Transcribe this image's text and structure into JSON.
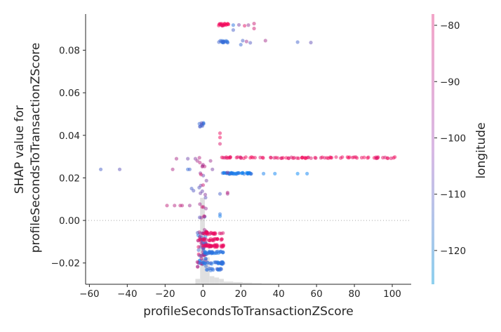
{
  "chart_data": {
    "type": "scatter",
    "xlabel": "profileSecondsToTransactionZScore",
    "ylabel_lines": [
      "SHAP value for",
      "profileSecondsToTransactionZScore"
    ],
    "colorbar_label": "longitude",
    "xlim": [
      -62,
      110
    ],
    "ylim": [
      -0.03,
      0.097
    ],
    "x_ticks": [
      -60,
      -40,
      -20,
      0,
      20,
      40,
      60,
      80,
      100
    ],
    "x_tick_labels": [
      "−60",
      "−40",
      "−20",
      "0",
      "20",
      "40",
      "60",
      "80",
      "100"
    ],
    "y_ticks": [
      -0.02,
      0.0,
      0.02,
      0.04,
      0.06,
      0.08
    ],
    "y_tick_labels": [
      "−0.02",
      "0.00",
      "0.02",
      "0.04",
      "0.06",
      "0.08"
    ],
    "color_range": [
      -126,
      -78
    ],
    "colorbar_ticks": [
      -80,
      -90,
      -100,
      -110,
      -120
    ],
    "colorbar_tick_labels": [
      "−80",
      "−90",
      "−100",
      "−110",
      "−120"
    ],
    "colors": {
      "low": "#8fd0ee",
      "mid": "#d9b9e4",
      "high": "#f3a6c9",
      "point_high": "#ff0052",
      "point_low": "#008afb",
      "histogram": "#e0e0e0",
      "axis": "#262626",
      "zero_line": "#999999"
    },
    "histogram": {
      "bin_edges": [
        -4,
        -1.5,
        1,
        3.5,
        6,
        8.5,
        11,
        16,
        21,
        26,
        31,
        36
      ],
      "counts": [
        0.02,
        0.32,
        0.1,
        0.03,
        0.025,
        0.02,
        0.01,
        0.008,
        0.006,
        0.004,
        0.002
      ]
    },
    "series": [
      {
        "clusters": [
          {
            "x": [
              -3,
              2
            ],
            "y": [
              -0.022,
              -0.004
            ],
            "n": 70,
            "c": [
              -80,
              -125
            ]
          },
          {
            "x": [
              -2,
              2
            ],
            "y": [
              0.0,
              0.031
            ],
            "n": 26,
            "c": [
              -85,
              -112
            ]
          },
          {
            "x": [
              -2,
              1
            ],
            "y": [
              0.044,
              0.046
            ],
            "n": 10,
            "c": [
              -108,
              -118
            ]
          },
          {
            "x": [
              0,
              11
            ],
            "y": [
              -0.0125,
              -0.0115
            ],
            "n": 38,
            "c": [
              -80,
              -84
            ]
          },
          {
            "x": [
              0,
              11
            ],
            "y": [
              -0.0155,
              -0.0145
            ],
            "n": 32,
            "c": [
              -115,
              -122
            ]
          },
          {
            "x": [
              0,
              11
            ],
            "y": [
              -0.0205,
              -0.0195
            ],
            "n": 32,
            "c": [
              -112,
              -122
            ]
          },
          {
            "x": [
              0,
              11
            ],
            "y": [
              -0.0065,
              -0.0055
            ],
            "n": 24,
            "c": [
              -80,
              -86
            ]
          },
          {
            "x": [
              0,
              11
            ],
            "y": [
              -0.0095,
              -0.0085
            ],
            "n": 22,
            "c": [
              -80,
              -84
            ]
          },
          {
            "x": [
              0,
              10
            ],
            "y": [
              -0.0235,
              -0.0225
            ],
            "n": 16,
            "c": [
              -112,
              -122
            ]
          },
          {
            "x": [
              10,
              102
            ],
            "y": [
              0.0292,
              0.0298
            ],
            "n": 85,
            "c": [
              -78,
              -86
            ]
          },
          {
            "x": [
              10,
              26
            ],
            "y": [
              0.0218,
              0.0224
            ],
            "n": 46,
            "c": [
              -115,
              -125
            ]
          },
          {
            "x": [
              8,
              14
            ],
            "y": [
              0.0915,
              0.0925
            ],
            "n": 18,
            "c": [
              -78,
              -84
            ]
          },
          {
            "x": [
              8,
              14
            ],
            "y": [
              0.0835,
              0.0845
            ],
            "n": 16,
            "c": [
              -112,
              -120
            ]
          }
        ],
        "points": [
          {
            "x": -54,
            "y": 0.024,
            "c": -112
          },
          {
            "x": -44,
            "y": 0.024,
            "c": -108
          },
          {
            "x": -19,
            "y": 0.007,
            "c": -90
          },
          {
            "x": -16,
            "y": 0.024,
            "c": -93
          },
          {
            "x": -15,
            "y": 0.007,
            "c": -92
          },
          {
            "x": -12,
            "y": 0.007,
            "c": -90
          },
          {
            "x": -11,
            "y": 0.007,
            "c": -91
          },
          {
            "x": -14,
            "y": 0.029,
            "c": -94
          },
          {
            "x": -8,
            "y": 0.029,
            "c": -104
          },
          {
            "x": -7,
            "y": 0.007,
            "c": -96
          },
          {
            "x": -8,
            "y": 0.024,
            "c": -116
          },
          {
            "x": -7,
            "y": 0.024,
            "c": -113
          },
          {
            "x": -6,
            "y": 0.015,
            "c": -112
          },
          {
            "x": -5,
            "y": 0.014,
            "c": -110
          },
          {
            "x": -4,
            "y": 0.029,
            "c": -100
          },
          {
            "x": -3,
            "y": 0.028,
            "c": -95
          },
          {
            "x": 4,
            "y": 0.028,
            "c": -96
          },
          {
            "x": 5,
            "y": 0.024,
            "c": -102
          },
          {
            "x": 9,
            "y": 0.041,
            "c": -82
          },
          {
            "x": 9,
            "y": 0.039,
            "c": -80
          },
          {
            "x": 9,
            "y": 0.036,
            "c": -85
          },
          {
            "x": 9,
            "y": 0.0125,
            "c": -112
          },
          {
            "x": 9,
            "y": 0.003,
            "c": -118
          },
          {
            "x": 9,
            "y": 0.002,
            "c": -122
          },
          {
            "x": 13,
            "y": 0.0125,
            "c": -95
          },
          {
            "x": 13,
            "y": 0.0131,
            "c": -92
          },
          {
            "x": 13,
            "y": 0.0225,
            "c": -100
          },
          {
            "x": 32,
            "y": 0.022,
            "c": -122
          },
          {
            "x": 38,
            "y": 0.022,
            "c": -124
          },
          {
            "x": 50,
            "y": 0.022,
            "c": -125
          },
          {
            "x": 55,
            "y": 0.022,
            "c": -124
          },
          {
            "x": 16,
            "y": 0.0895,
            "c": -112
          },
          {
            "x": 19,
            "y": 0.0919,
            "c": -102
          },
          {
            "x": 24,
            "y": 0.0918,
            "c": -98
          },
          {
            "x": 27,
            "y": 0.0925,
            "c": -88
          },
          {
            "x": 27,
            "y": 0.0902,
            "c": -87
          },
          {
            "x": 21,
            "y": 0.0845,
            "c": -112
          },
          {
            "x": 20,
            "y": 0.0826,
            "c": -115
          },
          {
            "x": 23,
            "y": 0.0841,
            "c": -95
          },
          {
            "x": 25,
            "y": 0.0835,
            "c": -110
          },
          {
            "x": 33,
            "y": 0.0845,
            "c": -95
          },
          {
            "x": 50,
            "y": 0.0838,
            "c": -113
          },
          {
            "x": 57,
            "y": 0.0836,
            "c": -107
          },
          {
            "x": 16,
            "y": 0.0918,
            "c": -118
          },
          {
            "x": 22,
            "y": 0.0915,
            "c": -84
          }
        ]
      }
    ]
  }
}
